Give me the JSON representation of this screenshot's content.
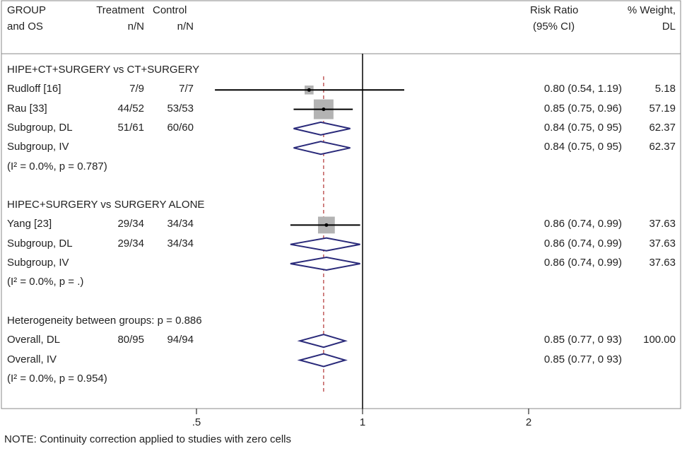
{
  "header": {
    "group_line1": "GROUP",
    "group_line2": "and OS",
    "treatment_line1": "Treatment",
    "treatment_line2": "n/N",
    "control_line1": "Control",
    "control_line2": "n/N",
    "rr_line1": "Risk Ratio",
    "rr_line2": "(95% CI)",
    "weight_line1": "% Weight,",
    "weight_line2": "DL"
  },
  "rows": [
    {
      "label": "HIPE+CT+SURGERY vs CT+SURGERY",
      "kind": "heading"
    },
    {
      "label": "Rudloff [16]",
      "treat": "7/9",
      "control": "7/7",
      "est": 0.8,
      "lo": 0.54,
      "hi": 1.19,
      "ci_text": "0.80 (0.54, 1.19)",
      "weight": "5.18",
      "kind": "study"
    },
    {
      "label": "Rau [33]",
      "treat": "44/52",
      "control": "53/53",
      "est": 0.85,
      "lo": 0.75,
      "hi": 0.96,
      "ci_text": "0.85 (0.75, 0.96)",
      "weight": "57.19",
      "kind": "study"
    },
    {
      "label": "Subgroup, DL",
      "treat": "51/61",
      "control": "60/60",
      "est": 0.84,
      "lo": 0.75,
      "hi": 0.95,
      "ci_text": "0.84 (0.75, 0 95)",
      "weight": "62.37",
      "kind": "diamond"
    },
    {
      "label": "Subgroup, IV",
      "treat": "",
      "control": "",
      "est": 0.84,
      "lo": 0.75,
      "hi": 0.95,
      "ci_text": "0.84 (0.75, 0 95)",
      "weight": "62.37",
      "kind": "diamond"
    },
    {
      "label": "(I² = 0.0%, p = 0.787)",
      "kind": "note"
    },
    {
      "label": "",
      "kind": "blank"
    },
    {
      "label": "HIPEC+SURGERY vs SURGERY ALONE",
      "kind": "heading"
    },
    {
      "label": "Yang [23]",
      "treat": "29/34",
      "control": "34/34",
      "est": 0.86,
      "lo": 0.74,
      "hi": 0.99,
      "ci_text": "0.86 (0.74, 0.99)",
      "weight": "37.63",
      "kind": "study"
    },
    {
      "label": "Subgroup, DL",
      "treat": "29/34",
      "control": "34/34",
      "est": 0.86,
      "lo": 0.74,
      "hi": 0.99,
      "ci_text": "0.86 (0.74, 0.99)",
      "weight": "37.63",
      "kind": "diamond"
    },
    {
      "label": "Subgroup, IV",
      "treat": "",
      "control": "",
      "est": 0.86,
      "lo": 0.74,
      "hi": 0.99,
      "ci_text": "0.86 (0.74, 0.99)",
      "weight": "37.63",
      "kind": "diamond"
    },
    {
      "label": "(I² = 0.0%, p = .)",
      "kind": "note"
    },
    {
      "label": "",
      "kind": "blank"
    },
    {
      "label": "Heterogeneity between groups: p = 0.886",
      "kind": "note"
    },
    {
      "label": "Overall, DL",
      "treat": "80/95",
      "control": "94/94",
      "est": 0.85,
      "lo": 0.77,
      "hi": 0.93,
      "ci_text": "0.85 (0.77, 0 93)",
      "weight": "100.00",
      "kind": "diamond"
    },
    {
      "label": "Overall, IV",
      "treat": "",
      "control": "",
      "est": 0.85,
      "lo": 0.77,
      "hi": 0.93,
      "ci_text": "0.85 (0.77, 0 93)",
      "weight": "",
      "kind": "diamond"
    },
    {
      "label": "(I² = 0.0%, p = 0.954)",
      "kind": "note"
    }
  ],
  "axis": {
    "ticks": [
      {
        "value": 0.5,
        "label": ".5"
      },
      {
        "value": 1,
        "label": "1"
      },
      {
        "value": 2,
        "label": "2"
      }
    ],
    "null_value": 1,
    "overall_estimate": 0.85,
    "scale": "log"
  },
  "footer_note": "NOTE: Continuity correction applied to studies with zero cells",
  "colors": {
    "diamond": "#2a2a7a",
    "square": "#b3b3b3",
    "dashed_line": "#b03030",
    "line": "#000000",
    "frame": "#888888"
  },
  "chart_data": {
    "type": "forest",
    "scale": "log",
    "effect_measure": "Risk Ratio",
    "null_value": 1,
    "overall_estimate": 0.85,
    "xticks": [
      0.5,
      1,
      2
    ],
    "studies": [
      {
        "name": "Rudloff [16]",
        "group": "HIPE+CT+SURGERY vs CT+SURGERY",
        "rr": 0.8,
        "lo": 0.54,
        "hi": 1.19,
        "weight": 5.18
      },
      {
        "name": "Rau [33]",
        "group": "HIPE+CT+SURGERY vs CT+SURGERY",
        "rr": 0.85,
        "lo": 0.75,
        "hi": 0.96,
        "weight": 57.19
      },
      {
        "name": "Yang [23]",
        "group": "HIPEC+SURGERY vs SURGERY ALONE",
        "rr": 0.86,
        "lo": 0.74,
        "hi": 0.99,
        "weight": 37.63
      }
    ],
    "pooled": [
      {
        "name": "Subgroup, DL",
        "group": "HIPE+CT+SURGERY vs CT+SURGERY",
        "rr": 0.84,
        "lo": 0.75,
        "hi": 0.95
      },
      {
        "name": "Subgroup, IV",
        "group": "HIPE+CT+SURGERY vs CT+SURGERY",
        "rr": 0.84,
        "lo": 0.75,
        "hi": 0.95
      },
      {
        "name": "Subgroup, DL",
        "group": "HIPEC+SURGERY vs SURGERY ALONE",
        "rr": 0.86,
        "lo": 0.74,
        "hi": 0.99
      },
      {
        "name": "Subgroup, IV",
        "group": "HIPEC+SURGERY vs SURGERY ALONE",
        "rr": 0.86,
        "lo": 0.74,
        "hi": 0.99
      },
      {
        "name": "Overall, DL",
        "rr": 0.85,
        "lo": 0.77,
        "hi": 0.93
      },
      {
        "name": "Overall, IV",
        "rr": 0.85,
        "lo": 0.77,
        "hi": 0.93
      }
    ]
  }
}
